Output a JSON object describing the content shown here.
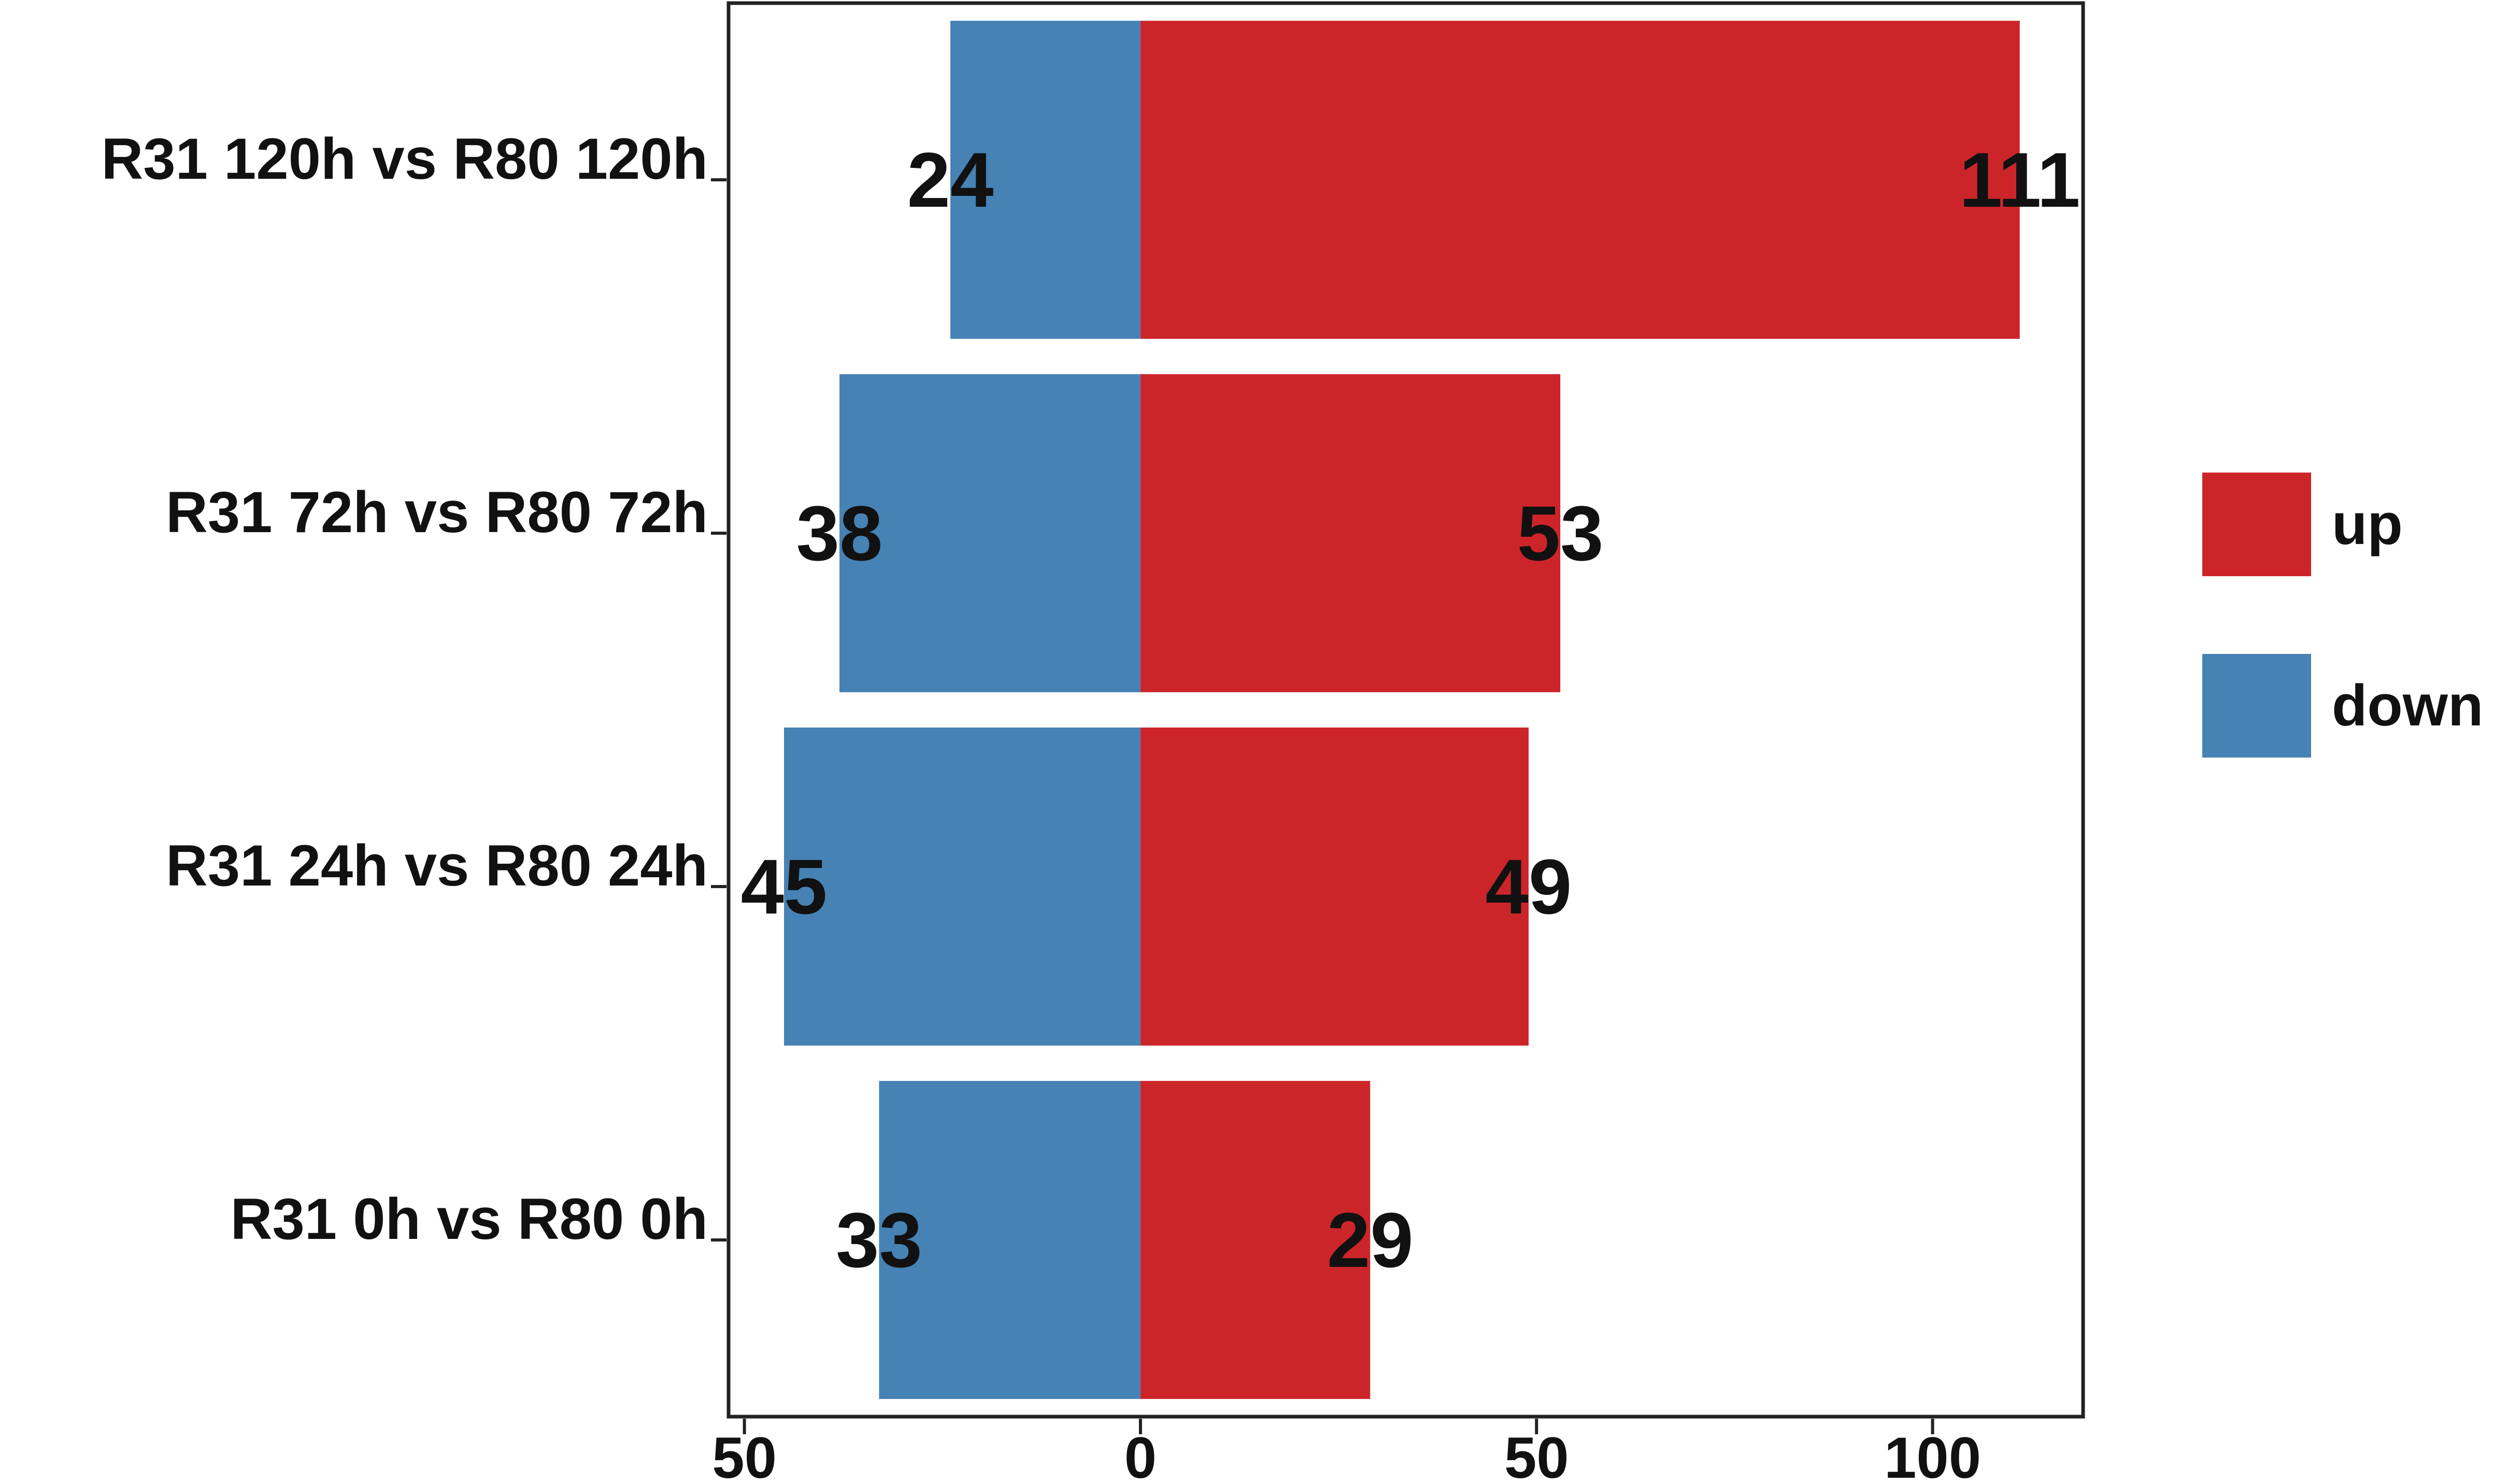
{
  "chart_data": {
    "type": "bar",
    "orientation": "horizontal",
    "stacking": "diverging",
    "categories": [
      "R31 120h vs R80 120h",
      "R31 72h vs R80 72h",
      "R31 24h vs R80 24h",
      "R31 0h vs R80 0h"
    ],
    "series": [
      {
        "name": "up",
        "color": "#CC2529",
        "values": [
          111,
          53,
          49,
          29
        ]
      },
      {
        "name": "down",
        "color": "#4682B4",
        "values": [
          24,
          38,
          45,
          33
        ]
      }
    ],
    "xlim": [
      -52,
      119
    ],
    "xticks": [
      -50,
      0,
      50,
      100
    ],
    "xtick_labels": [
      "50",
      "0",
      "50",
      "100"
    ],
    "title": "",
    "xlabel": "",
    "ylabel": "",
    "grid": false,
    "legend_position": "right"
  }
}
